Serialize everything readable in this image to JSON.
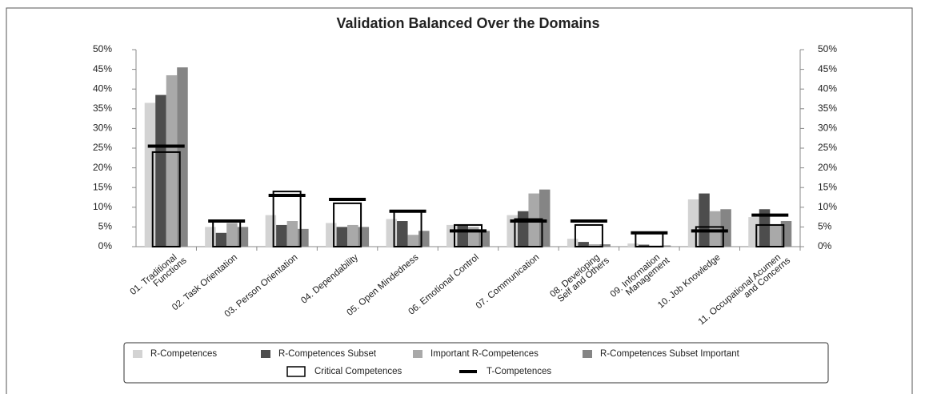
{
  "chart_data": {
    "type": "bar",
    "title": "Validation Balanced Over the Domains",
    "categories": [
      [
        "01. Traditional",
        "Functions"
      ],
      [
        "02. Task Orientation"
      ],
      [
        "03. Person Orientation"
      ],
      [
        "04. Dependability"
      ],
      [
        "05. Open Mindedness"
      ],
      [
        "06. Emotional Control"
      ],
      [
        "07. Communication"
      ],
      [
        "08. Developing",
        "Self and Others"
      ],
      [
        "09. Information",
        "Management"
      ],
      [
        "10. Job Knowledge"
      ],
      [
        "11. Occupational Acumen",
        "and Concerns"
      ]
    ],
    "series": [
      {
        "name": "R-Competences",
        "color": "#d3d3d3",
        "kind": "bar",
        "values": [
          36.5,
          5,
          8,
          6,
          7,
          5.5,
          8,
          2,
          0.8,
          12,
          7.5
        ]
      },
      {
        "name": "R-Competences Subset",
        "color": "#4d4d4d",
        "kind": "bar",
        "values": [
          38.5,
          3.5,
          5.5,
          5,
          6.5,
          5.5,
          9,
          1.2,
          0.5,
          13.5,
          9.5
        ]
      },
      {
        "name": "Important R-Competences",
        "color": "#a9a9a9",
        "kind": "bar",
        "values": [
          43.5,
          6,
          6.5,
          5.5,
          3,
          5,
          13.5,
          0.6,
          0.3,
          9,
          5.5
        ]
      },
      {
        "name": "R-Competences Subset Important",
        "color": "#858585",
        "kind": "bar",
        "values": [
          45.5,
          5,
          4.5,
          5,
          4,
          4,
          14.5,
          0.6,
          0.3,
          9.5,
          6.5
        ]
      },
      {
        "name": "Critical Competences",
        "color": "#000000",
        "kind": "box",
        "values": [
          24,
          6.5,
          14,
          11,
          9,
          5.5,
          7,
          5.5,
          3.5,
          5,
          5.5
        ]
      },
      {
        "name": "T-Competences",
        "color": "#000000",
        "kind": "line",
        "values": [
          25.5,
          6.5,
          13,
          12,
          9,
          4,
          6.5,
          6.5,
          3.5,
          4,
          8
        ]
      }
    ],
    "ylim": [
      0,
      50
    ],
    "yticks": [
      {
        "value": 0,
        "label": "0%"
      },
      {
        "value": 5,
        "label": "5%"
      },
      {
        "value": 10,
        "label": "10%"
      },
      {
        "value": 15,
        "label": "15%"
      },
      {
        "value": 20,
        "label": "20%"
      },
      {
        "value": 25,
        "label": "25%"
      },
      {
        "value": 30,
        "label": "30%"
      },
      {
        "value": 35,
        "label": "35%"
      },
      {
        "value": 40,
        "label": "40%"
      },
      {
        "value": 45,
        "label": "45%"
      },
      {
        "value": 50,
        "label": "50%"
      }
    ],
    "y2lim": [
      0,
      50
    ],
    "y2ticks": [
      {
        "value": 0,
        "label": "0%"
      },
      {
        "value": 5,
        "label": "5%"
      },
      {
        "value": 10,
        "label": "10%"
      },
      {
        "value": 15,
        "label": "15%"
      },
      {
        "value": 20,
        "label": "20%"
      },
      {
        "value": 25,
        "label": "25%"
      },
      {
        "value": 30,
        "label": "30%"
      },
      {
        "value": 35,
        "label": "35%"
      },
      {
        "value": 40,
        "label": "40%"
      },
      {
        "value": 45,
        "label": "45%"
      },
      {
        "value": 50,
        "label": "50%"
      }
    ],
    "legend": "bottom"
  }
}
